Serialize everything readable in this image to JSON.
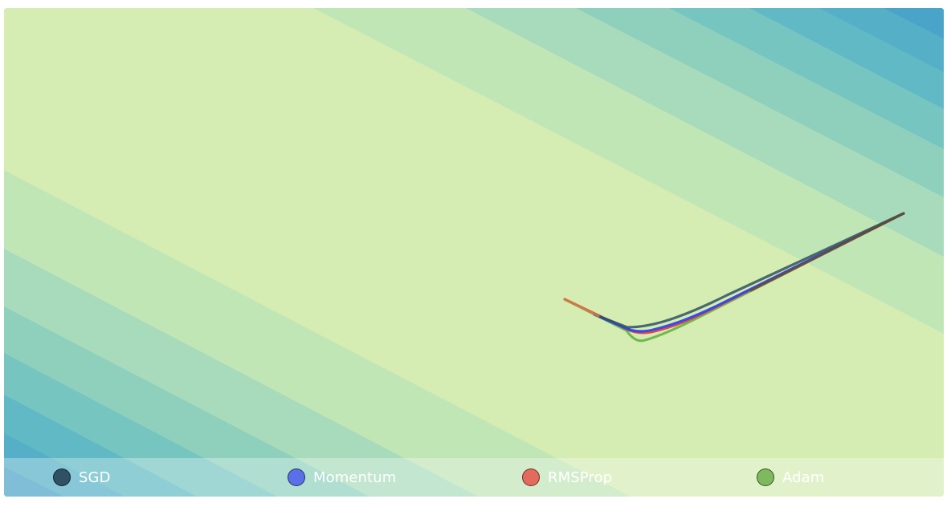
{
  "colors": {
    "contour_bands": [
      "#d5edb3",
      "#c1e6b6",
      "#a8dbbb",
      "#8fd0bd",
      "#77c5c1",
      "#60b9c5",
      "#4aa3c8"
    ],
    "legend_background": "rgba(255,255,255,0.30)"
  },
  "legend": {
    "items": [
      {
        "label": "SGD",
        "color": "#2f5163"
      },
      {
        "label": "Momentum",
        "color": "#5b6fe8"
      },
      {
        "label": "RMSProp",
        "color": "#e46a5c"
      },
      {
        "label": "Adam",
        "color": "#7fb95d"
      }
    ]
  },
  "paths": [
    {
      "name": "SGD",
      "color": "#2f5163"
    },
    {
      "name": "Momentum",
      "color": "#3046ee"
    },
    {
      "name": "RMSProp",
      "color": "#e8403a"
    },
    {
      "name": "Adam",
      "color": "#6cb74a"
    }
  ]
}
